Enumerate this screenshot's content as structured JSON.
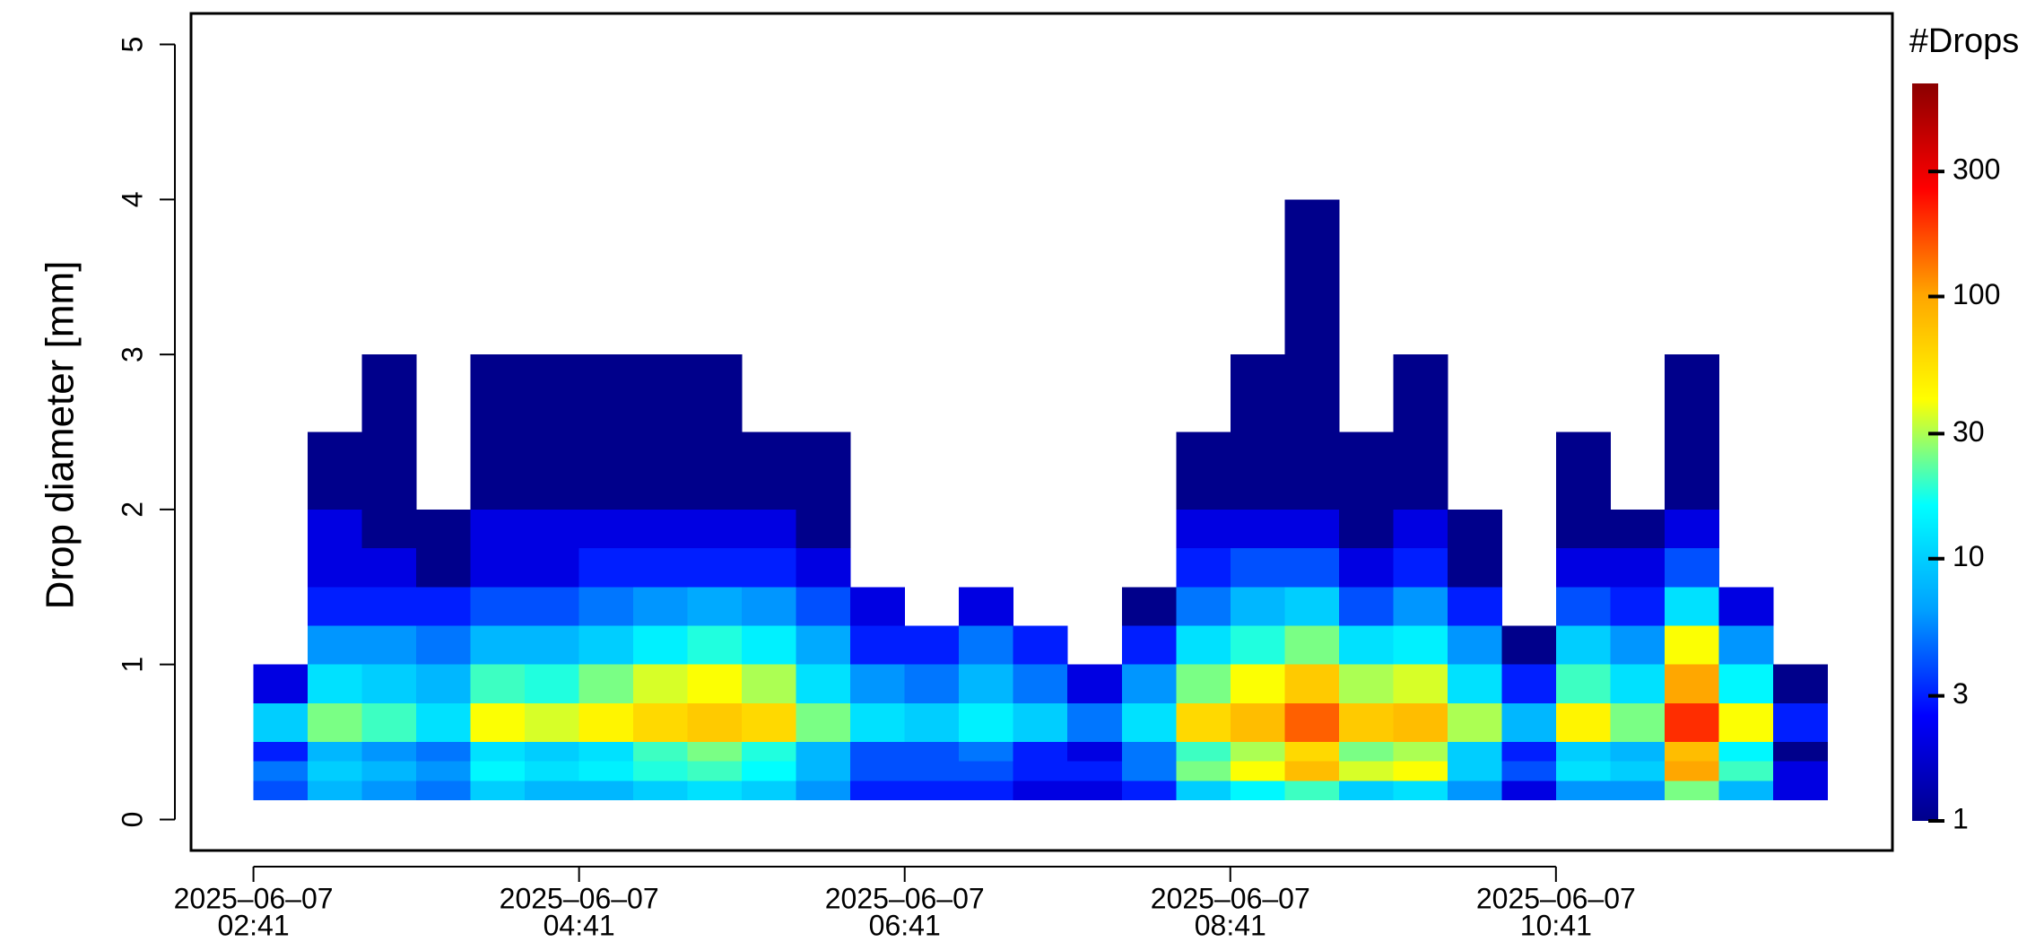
{
  "chart_data": {
    "type": "heatmap",
    "y_label": "Drop diameter [mm]",
    "xlim": [
      "2025-06-07 02:18",
      "2025-06-07 12:45"
    ],
    "xticks": [
      {
        "value": "2025-06-07 02:41",
        "label": [
          "2025–06–07",
          "02:41"
        ]
      },
      {
        "value": "2025-06-07 04:41",
        "label": [
          "2025–06–07",
          "04:41"
        ]
      },
      {
        "value": "2025-06-07 06:41",
        "label": [
          "2025–06–07",
          "06:41"
        ]
      },
      {
        "value": "2025-06-07 08:41",
        "label": [
          "2025–06–07",
          "08:41"
        ]
      },
      {
        "value": "2025-06-07 10:41",
        "label": [
          "2025–06–07",
          "10:41"
        ]
      }
    ],
    "ylim": [
      -0.2,
      5.2
    ],
    "yticks": [
      0,
      1,
      2,
      3,
      4,
      5
    ],
    "x_edges": [
      "2025-06-07 02:41",
      "2025-06-07 03:01",
      "2025-06-07 03:21",
      "2025-06-07 03:41",
      "2025-06-07 04:01",
      "2025-06-07 04:21",
      "2025-06-07 04:41",
      "2025-06-07 05:01",
      "2025-06-07 05:21",
      "2025-06-07 05:41",
      "2025-06-07 06:01",
      "2025-06-07 06:21",
      "2025-06-07 06:41",
      "2025-06-07 07:01",
      "2025-06-07 07:21",
      "2025-06-07 07:41",
      "2025-06-07 08:01",
      "2025-06-07 08:21",
      "2025-06-07 08:41",
      "2025-06-07 09:01",
      "2025-06-07 09:21",
      "2025-06-07 09:41",
      "2025-06-07 10:01",
      "2025-06-07 10:21",
      "2025-06-07 10:41",
      "2025-06-07 11:01",
      "2025-06-07 11:21",
      "2025-06-07 11:41",
      "2025-06-07 12:01",
      "2025-06-07 12:21"
    ],
    "y_edges": [
      0.125,
      0.25,
      0.375,
      0.5,
      0.75,
      1.0,
      1.25,
      1.5,
      1.75,
      2.0,
      2.5,
      3.0,
      3.5,
      4.0
    ],
    "values": [
      [
        4,
        5,
        3,
        10,
        2,
        null,
        null,
        null,
        null,
        null,
        null,
        null,
        null
      ],
      [
        8,
        10,
        8,
        25,
        12,
        6,
        3,
        2,
        2,
        1,
        null,
        null,
        null
      ],
      [
        6,
        8,
        6,
        20,
        10,
        6,
        3,
        2,
        1,
        1,
        1,
        null,
        null
      ],
      [
        5,
        6,
        5,
        12,
        8,
        5,
        3,
        1,
        1,
        null,
        null,
        null,
        null
      ],
      [
        10,
        15,
        12,
        40,
        20,
        8,
        4,
        2,
        2,
        1,
        1,
        null,
        null
      ],
      [
        8,
        12,
        10,
        35,
        18,
        8,
        4,
        2,
        2,
        1,
        1,
        null,
        null
      ],
      [
        8,
        14,
        12,
        45,
        25,
        10,
        5,
        3,
        2,
        1,
        1,
        null,
        null
      ],
      [
        10,
        18,
        20,
        60,
        35,
        14,
        6,
        3,
        2,
        1,
        1,
        null,
        null
      ],
      [
        12,
        20,
        25,
        70,
        40,
        18,
        7,
        3,
        2,
        1,
        1,
        null,
        null
      ],
      [
        10,
        16,
        18,
        60,
        30,
        14,
        6,
        3,
        2,
        1,
        null,
        null,
        null
      ],
      [
        6,
        8,
        8,
        25,
        12,
        7,
        4,
        2,
        1,
        1,
        null,
        null,
        null
      ],
      [
        3,
        4,
        4,
        12,
        6,
        3,
        2,
        null,
        null,
        null,
        null,
        null,
        null
      ],
      [
        3,
        4,
        4,
        10,
        5,
        3,
        null,
        null,
        null,
        null,
        null,
        null,
        null
      ],
      [
        3,
        4,
        5,
        14,
        8,
        5,
        2,
        null,
        null,
        null,
        null,
        null,
        null
      ],
      [
        2,
        3,
        3,
        10,
        5,
        3,
        null,
        null,
        null,
        null,
        null,
        null,
        null
      ],
      [
        2,
        3,
        2,
        5,
        2,
        null,
        null,
        null,
        null,
        null,
        null,
        null,
        null
      ],
      [
        3,
        5,
        5,
        12,
        6,
        3,
        1,
        null,
        null,
        null,
        null,
        null,
        null
      ],
      [
        10,
        25,
        20,
        60,
        25,
        12,
        5,
        3,
        2,
        1,
        null,
        null,
        null
      ],
      [
        15,
        40,
        30,
        80,
        40,
        18,
        8,
        4,
        2,
        1,
        1,
        null,
        null
      ],
      [
        20,
        80,
        60,
        150,
        70,
        25,
        10,
        4,
        2,
        1,
        1,
        1,
        1
      ],
      [
        10,
        35,
        25,
        70,
        30,
        12,
        4,
        2,
        1,
        1,
        null,
        null,
        null
      ],
      [
        12,
        40,
        30,
        80,
        35,
        14,
        6,
        3,
        2,
        1,
        1,
        null,
        null
      ],
      [
        6,
        10,
        10,
        30,
        12,
        6,
        3,
        1,
        1,
        null,
        null,
        null,
        null
      ],
      [
        2,
        4,
        3,
        8,
        3,
        1,
        null,
        null,
        null,
        null,
        null,
        null,
        null
      ],
      [
        6,
        12,
        10,
        45,
        20,
        10,
        4,
        2,
        1,
        1,
        null,
        null,
        null
      ],
      [
        6,
        10,
        8,
        25,
        12,
        6,
        3,
        2,
        1,
        null,
        null,
        null,
        null
      ],
      [
        25,
        100,
        80,
        200,
        100,
        40,
        12,
        4,
        2,
        1,
        1,
        null,
        null
      ],
      [
        8,
        20,
        15,
        40,
        15,
        6,
        2,
        null,
        null,
        null,
        null,
        null,
        null
      ],
      [
        2,
        2,
        1,
        3,
        1,
        null,
        null,
        null,
        null,
        null,
        null,
        null,
        null
      ]
    ],
    "colormap": [
      "#00008b",
      "#0000ff",
      "#00a0ff",
      "#00ffff",
      "#ffff00",
      "#ffa500",
      "#ff0000",
      "#8b0000"
    ],
    "colorbar": {
      "title": "#Drops",
      "lim": [
        1,
        650
      ],
      "log": true,
      "ticks": [
        1,
        3,
        10,
        30,
        100,
        300
      ]
    }
  }
}
